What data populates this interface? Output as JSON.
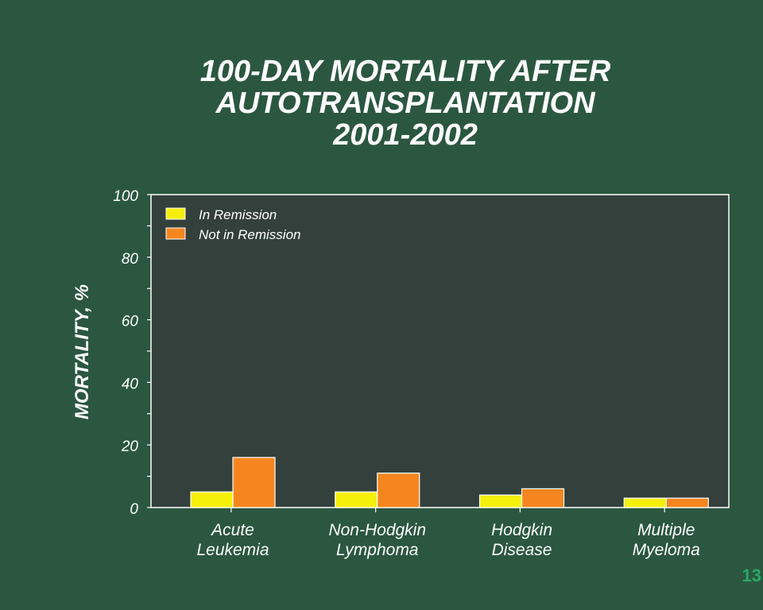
{
  "slide": {
    "title_lines": [
      "100-DAY MORTALITY AFTER",
      "AUTOTRANSPLANTATION",
      "2001-2002"
    ],
    "page_number": "13"
  },
  "chart_data": {
    "type": "bar",
    "title": "100-DAY MORTALITY AFTER AUTOTRANSPLANTATION 2001-2002",
    "ylabel": "MORTALITY, %",
    "xlabel": "",
    "ylim": [
      0,
      100
    ],
    "yticks": [
      0,
      20,
      40,
      60,
      80,
      100
    ],
    "categories": [
      [
        "Acute",
        "Leukemia"
      ],
      [
        "Non-Hodgkin",
        "Lymphoma"
      ],
      [
        "Hodgkin",
        "Disease"
      ],
      [
        "Multiple",
        "Myeloma"
      ]
    ],
    "series": [
      {
        "name": "In Remission",
        "color": "#f5f00a",
        "values": [
          5,
          5,
          4,
          3
        ]
      },
      {
        "name": "Not in Remission",
        "color": "#f5861f",
        "values": [
          16,
          11,
          6,
          3
        ]
      }
    ],
    "legend": "top-left",
    "grid": false,
    "plot_background": "#34403c"
  }
}
